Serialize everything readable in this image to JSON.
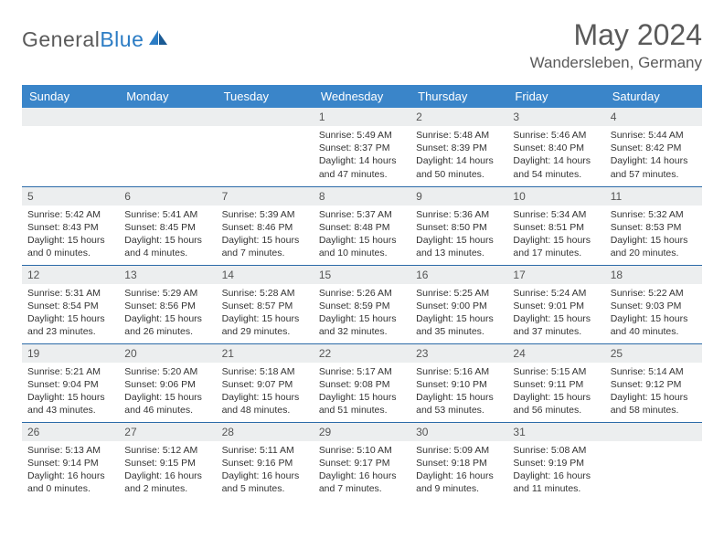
{
  "logo": {
    "part1": "General",
    "part2": "Blue"
  },
  "title": "May 2024",
  "location": "Wandersleben, Germany",
  "colors": {
    "header_bg": "#3a85c9",
    "row_border": "#2b6aa8",
    "daynum_bg": "#eceeef",
    "text": "#333333",
    "muted": "#5a5a5a"
  },
  "weekdays": [
    "Sunday",
    "Monday",
    "Tuesday",
    "Wednesday",
    "Thursday",
    "Friday",
    "Saturday"
  ],
  "weeks": [
    [
      null,
      null,
      null,
      {
        "n": "1",
        "sr": "5:49 AM",
        "ss": "8:37 PM",
        "dl": "14 hours and 47 minutes."
      },
      {
        "n": "2",
        "sr": "5:48 AM",
        "ss": "8:39 PM",
        "dl": "14 hours and 50 minutes."
      },
      {
        "n": "3",
        "sr": "5:46 AM",
        "ss": "8:40 PM",
        "dl": "14 hours and 54 minutes."
      },
      {
        "n": "4",
        "sr": "5:44 AM",
        "ss": "8:42 PM",
        "dl": "14 hours and 57 minutes."
      }
    ],
    [
      {
        "n": "5",
        "sr": "5:42 AM",
        "ss": "8:43 PM",
        "dl": "15 hours and 0 minutes."
      },
      {
        "n": "6",
        "sr": "5:41 AM",
        "ss": "8:45 PM",
        "dl": "15 hours and 4 minutes."
      },
      {
        "n": "7",
        "sr": "5:39 AM",
        "ss": "8:46 PM",
        "dl": "15 hours and 7 minutes."
      },
      {
        "n": "8",
        "sr": "5:37 AM",
        "ss": "8:48 PM",
        "dl": "15 hours and 10 minutes."
      },
      {
        "n": "9",
        "sr": "5:36 AM",
        "ss": "8:50 PM",
        "dl": "15 hours and 13 minutes."
      },
      {
        "n": "10",
        "sr": "5:34 AM",
        "ss": "8:51 PM",
        "dl": "15 hours and 17 minutes."
      },
      {
        "n": "11",
        "sr": "5:32 AM",
        "ss": "8:53 PM",
        "dl": "15 hours and 20 minutes."
      }
    ],
    [
      {
        "n": "12",
        "sr": "5:31 AM",
        "ss": "8:54 PM",
        "dl": "15 hours and 23 minutes."
      },
      {
        "n": "13",
        "sr": "5:29 AM",
        "ss": "8:56 PM",
        "dl": "15 hours and 26 minutes."
      },
      {
        "n": "14",
        "sr": "5:28 AM",
        "ss": "8:57 PM",
        "dl": "15 hours and 29 minutes."
      },
      {
        "n": "15",
        "sr": "5:26 AM",
        "ss": "8:59 PM",
        "dl": "15 hours and 32 minutes."
      },
      {
        "n": "16",
        "sr": "5:25 AM",
        "ss": "9:00 PM",
        "dl": "15 hours and 35 minutes."
      },
      {
        "n": "17",
        "sr": "5:24 AM",
        "ss": "9:01 PM",
        "dl": "15 hours and 37 minutes."
      },
      {
        "n": "18",
        "sr": "5:22 AM",
        "ss": "9:03 PM",
        "dl": "15 hours and 40 minutes."
      }
    ],
    [
      {
        "n": "19",
        "sr": "5:21 AM",
        "ss": "9:04 PM",
        "dl": "15 hours and 43 minutes."
      },
      {
        "n": "20",
        "sr": "5:20 AM",
        "ss": "9:06 PM",
        "dl": "15 hours and 46 minutes."
      },
      {
        "n": "21",
        "sr": "5:18 AM",
        "ss": "9:07 PM",
        "dl": "15 hours and 48 minutes."
      },
      {
        "n": "22",
        "sr": "5:17 AM",
        "ss": "9:08 PM",
        "dl": "15 hours and 51 minutes."
      },
      {
        "n": "23",
        "sr": "5:16 AM",
        "ss": "9:10 PM",
        "dl": "15 hours and 53 minutes."
      },
      {
        "n": "24",
        "sr": "5:15 AM",
        "ss": "9:11 PM",
        "dl": "15 hours and 56 minutes."
      },
      {
        "n": "25",
        "sr": "5:14 AM",
        "ss": "9:12 PM",
        "dl": "15 hours and 58 minutes."
      }
    ],
    [
      {
        "n": "26",
        "sr": "5:13 AM",
        "ss": "9:14 PM",
        "dl": "16 hours and 0 minutes."
      },
      {
        "n": "27",
        "sr": "5:12 AM",
        "ss": "9:15 PM",
        "dl": "16 hours and 2 minutes."
      },
      {
        "n": "28",
        "sr": "5:11 AM",
        "ss": "9:16 PM",
        "dl": "16 hours and 5 minutes."
      },
      {
        "n": "29",
        "sr": "5:10 AM",
        "ss": "9:17 PM",
        "dl": "16 hours and 7 minutes."
      },
      {
        "n": "30",
        "sr": "5:09 AM",
        "ss": "9:18 PM",
        "dl": "16 hours and 9 minutes."
      },
      {
        "n": "31",
        "sr": "5:08 AM",
        "ss": "9:19 PM",
        "dl": "16 hours and 11 minutes."
      },
      null
    ]
  ],
  "labels": {
    "sunrise": "Sunrise:",
    "sunset": "Sunset:",
    "daylight": "Daylight:"
  }
}
